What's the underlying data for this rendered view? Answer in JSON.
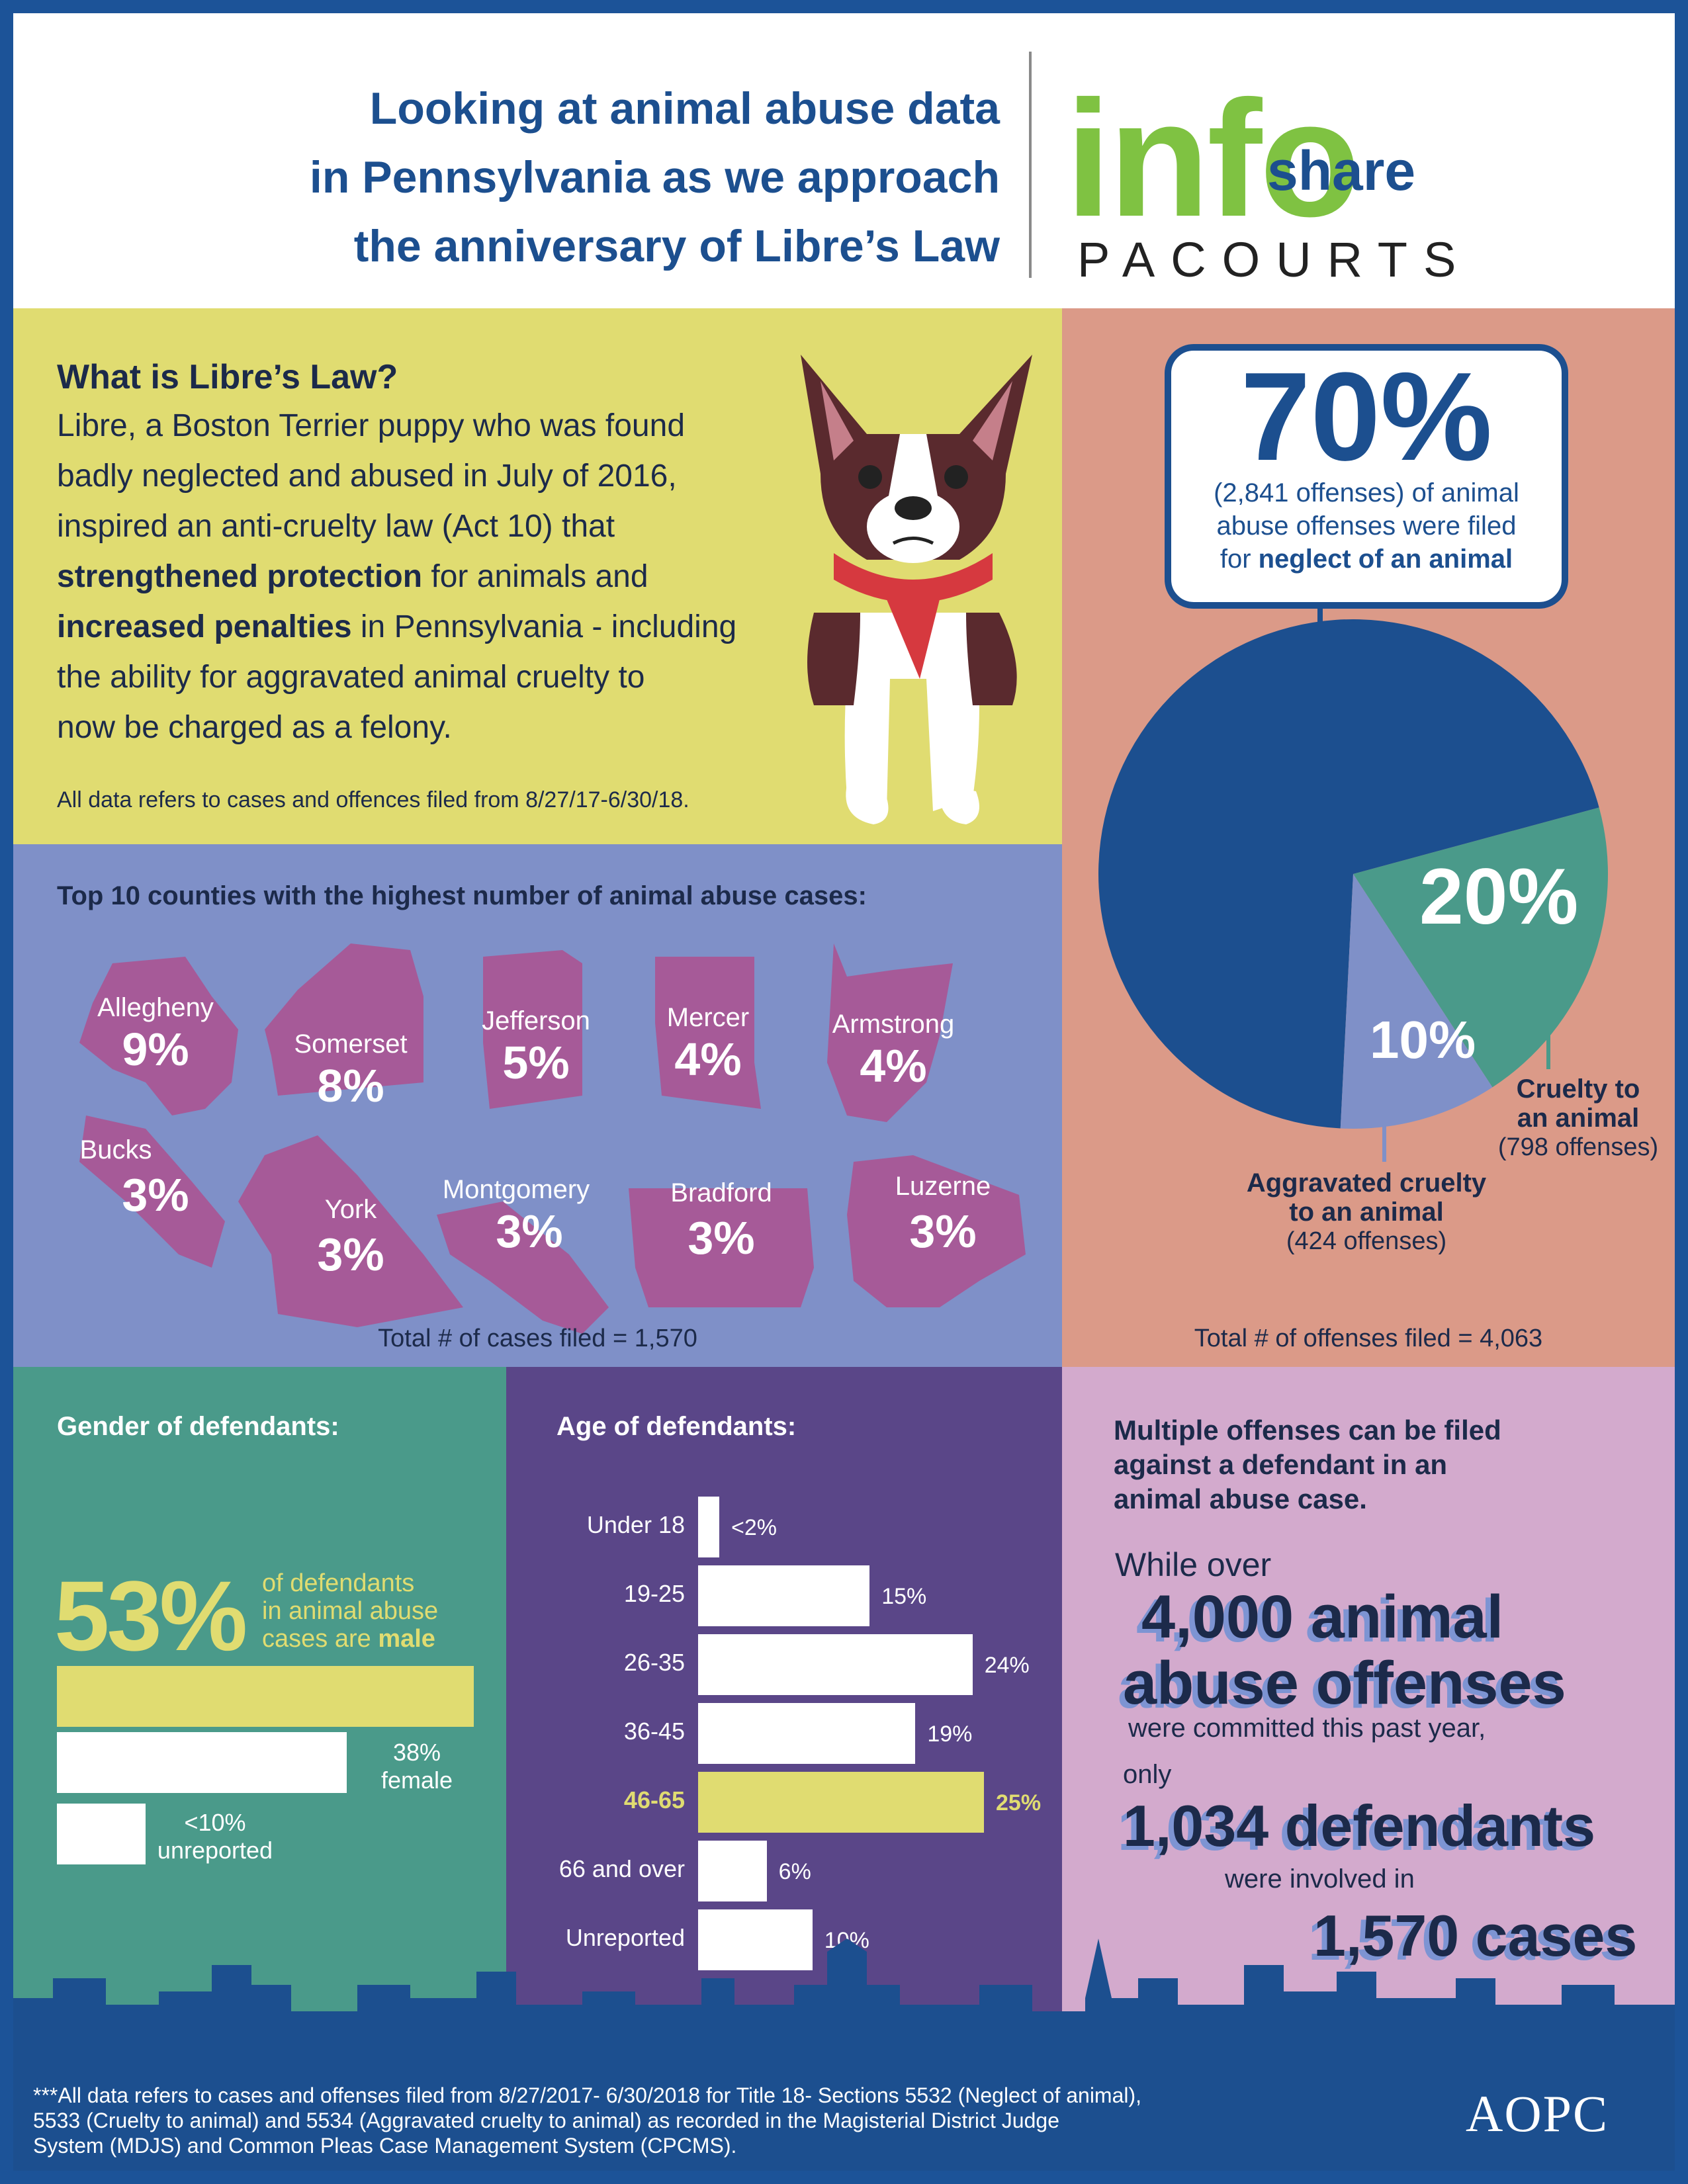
{
  "header": {
    "title_lines": [
      "Looking at animal abuse data",
      "in Pennsylvania as we approach",
      "the anniversary of Libre’s Law"
    ],
    "logo_info": "info",
    "logo_share": "share",
    "logo_pacourts": "PACOURTS"
  },
  "libre": {
    "heading": "What is Libre’s Law?",
    "line1": "Libre, a Boston Terrier puppy who was found",
    "line2": "badly neglected and abused in July of 2016,",
    "line3": "inspired an anti-cruelty law (Act 10) that",
    "line4_bold": "strengthened protection",
    "line4_rest": " for animals and",
    "line5_bold": "increased penalties",
    "line5_rest": " in Pennsylvania - including",
    "line6": "the ability for aggravated animal cruelty to",
    "line7": "now be charged as a felony.",
    "note": "All data refers to cases and offences filed from 8/27/17-6/30/18."
  },
  "counties": {
    "heading": "Top 10 counties with the highest number of animal abuse cases:",
    "items": [
      {
        "name": "Allegheny",
        "pct": "9%"
      },
      {
        "name": "Somerset",
        "pct": "8%"
      },
      {
        "name": "Jefferson",
        "pct": "5%"
      },
      {
        "name": "Mercer",
        "pct": "4%"
      },
      {
        "name": "Armstrong",
        "pct": "4%"
      },
      {
        "name": "Bucks",
        "pct": "3%"
      },
      {
        "name": "York",
        "pct": "3%"
      },
      {
        "name": "Montgomery",
        "pct": "3%"
      },
      {
        "name": "Bradford",
        "pct": "3%"
      },
      {
        "name": "Luzerne",
        "pct": "3%"
      }
    ],
    "total": "Total # of cases filed = 1,570"
  },
  "offenses": {
    "big_pct": "70%",
    "big_line1": "(2,841 offenses) of animal",
    "big_line2": "abuse offenses were filed",
    "big_line3_pre": "for ",
    "big_line3_bold": "neglect of an animal",
    "slices": [
      {
        "label": "Neglect of an animal",
        "value": 70,
        "color": "#1c4f8f"
      },
      {
        "label": "Cruelty to an animal",
        "value": 20,
        "color": "#4a9a8a"
      },
      {
        "label": "Aggravated cruelty to an animal",
        "value": 10,
        "color": "#7f90c8"
      }
    ],
    "pct_20": "20%",
    "pct_10": "10%",
    "cruelty_l1": "Cruelty to",
    "cruelty_l2": "an animal",
    "cruelty_count": "(798 offenses)",
    "agg_l1": "Aggravated cruelty",
    "agg_l2": "to an animal",
    "agg_count": "(424 offenses)",
    "total": "Total # of offenses filed = 4,063"
  },
  "gender": {
    "heading": "Gender of defendants:",
    "big_pct": "53%",
    "male_l1": "of defendants",
    "male_l2": "in animal abuse",
    "male_l3_pre": "cases are ",
    "male_l3_bold": "male",
    "female_pct": "38%",
    "female_label": "female",
    "unrep_pct": "<10%",
    "unrep_label": "unreported",
    "bars": [
      {
        "label": "male",
        "value": 53,
        "color": "#e0dc71"
      },
      {
        "label": "female",
        "value": 38,
        "color": "#ffffff"
      },
      {
        "label": "unreported",
        "value": 9,
        "color": "#ffffff"
      }
    ]
  },
  "age": {
    "heading": "Age of defendants:",
    "rows": [
      {
        "label": "Under 18",
        "value_text": "<2%",
        "value": 1.5,
        "highlight": false
      },
      {
        "label": "19-25",
        "value_text": "15%",
        "value": 15,
        "highlight": false
      },
      {
        "label": "26-35",
        "value_text": "24%",
        "value": 24,
        "highlight": false
      },
      {
        "label": "36-45",
        "value_text": "19%",
        "value": 19,
        "highlight": false
      },
      {
        "label": "46-65",
        "value_text": "25%",
        "value": 25,
        "highlight": true
      },
      {
        "label": "66 and over",
        "value_text": "6%",
        "value": 6,
        "highlight": false
      },
      {
        "label": "Unreported",
        "value_text": "10%",
        "value": 10,
        "highlight": false
      }
    ]
  },
  "multi": {
    "heading_l1": "Multiple offenses can be filed",
    "heading_l2": "against a defendant in an",
    "heading_l3": "animal abuse case.",
    "while_over": "While over",
    "stat1_l1": "4,000 animal",
    "stat1_l2": "abuse offenses",
    "committed": "were committed this past year,",
    "only": "only",
    "stat2": "1,034 defendants",
    "involved": "were involved in",
    "stat3": "1,570 cases"
  },
  "footer": {
    "note_l1": "***All data refers to cases and offenses filed from 8/27/2017- 6/30/2018 for Title 18- Sections 5532 (Neglect of animal),",
    "note_l2": "5533 (Cruelty to animal) and 5534 (Aggravated cruelty to animal) as recorded in the Magisterial District Judge",
    "note_l3": "System (MDJS) and Common Pleas Case Management System (CPCMS).",
    "logo": "AOPC"
  },
  "colors": {
    "navy": "#1c4f8f",
    "yellow": "#e0dc71",
    "teal": "#4a9a8a",
    "periwinkle": "#7f90c8",
    "purple": "#5a4688",
    "salmon": "#db9a88",
    "pink": "#d3aacd",
    "county_magenta": "#a65a98",
    "logo_green": "#7fc242"
  }
}
